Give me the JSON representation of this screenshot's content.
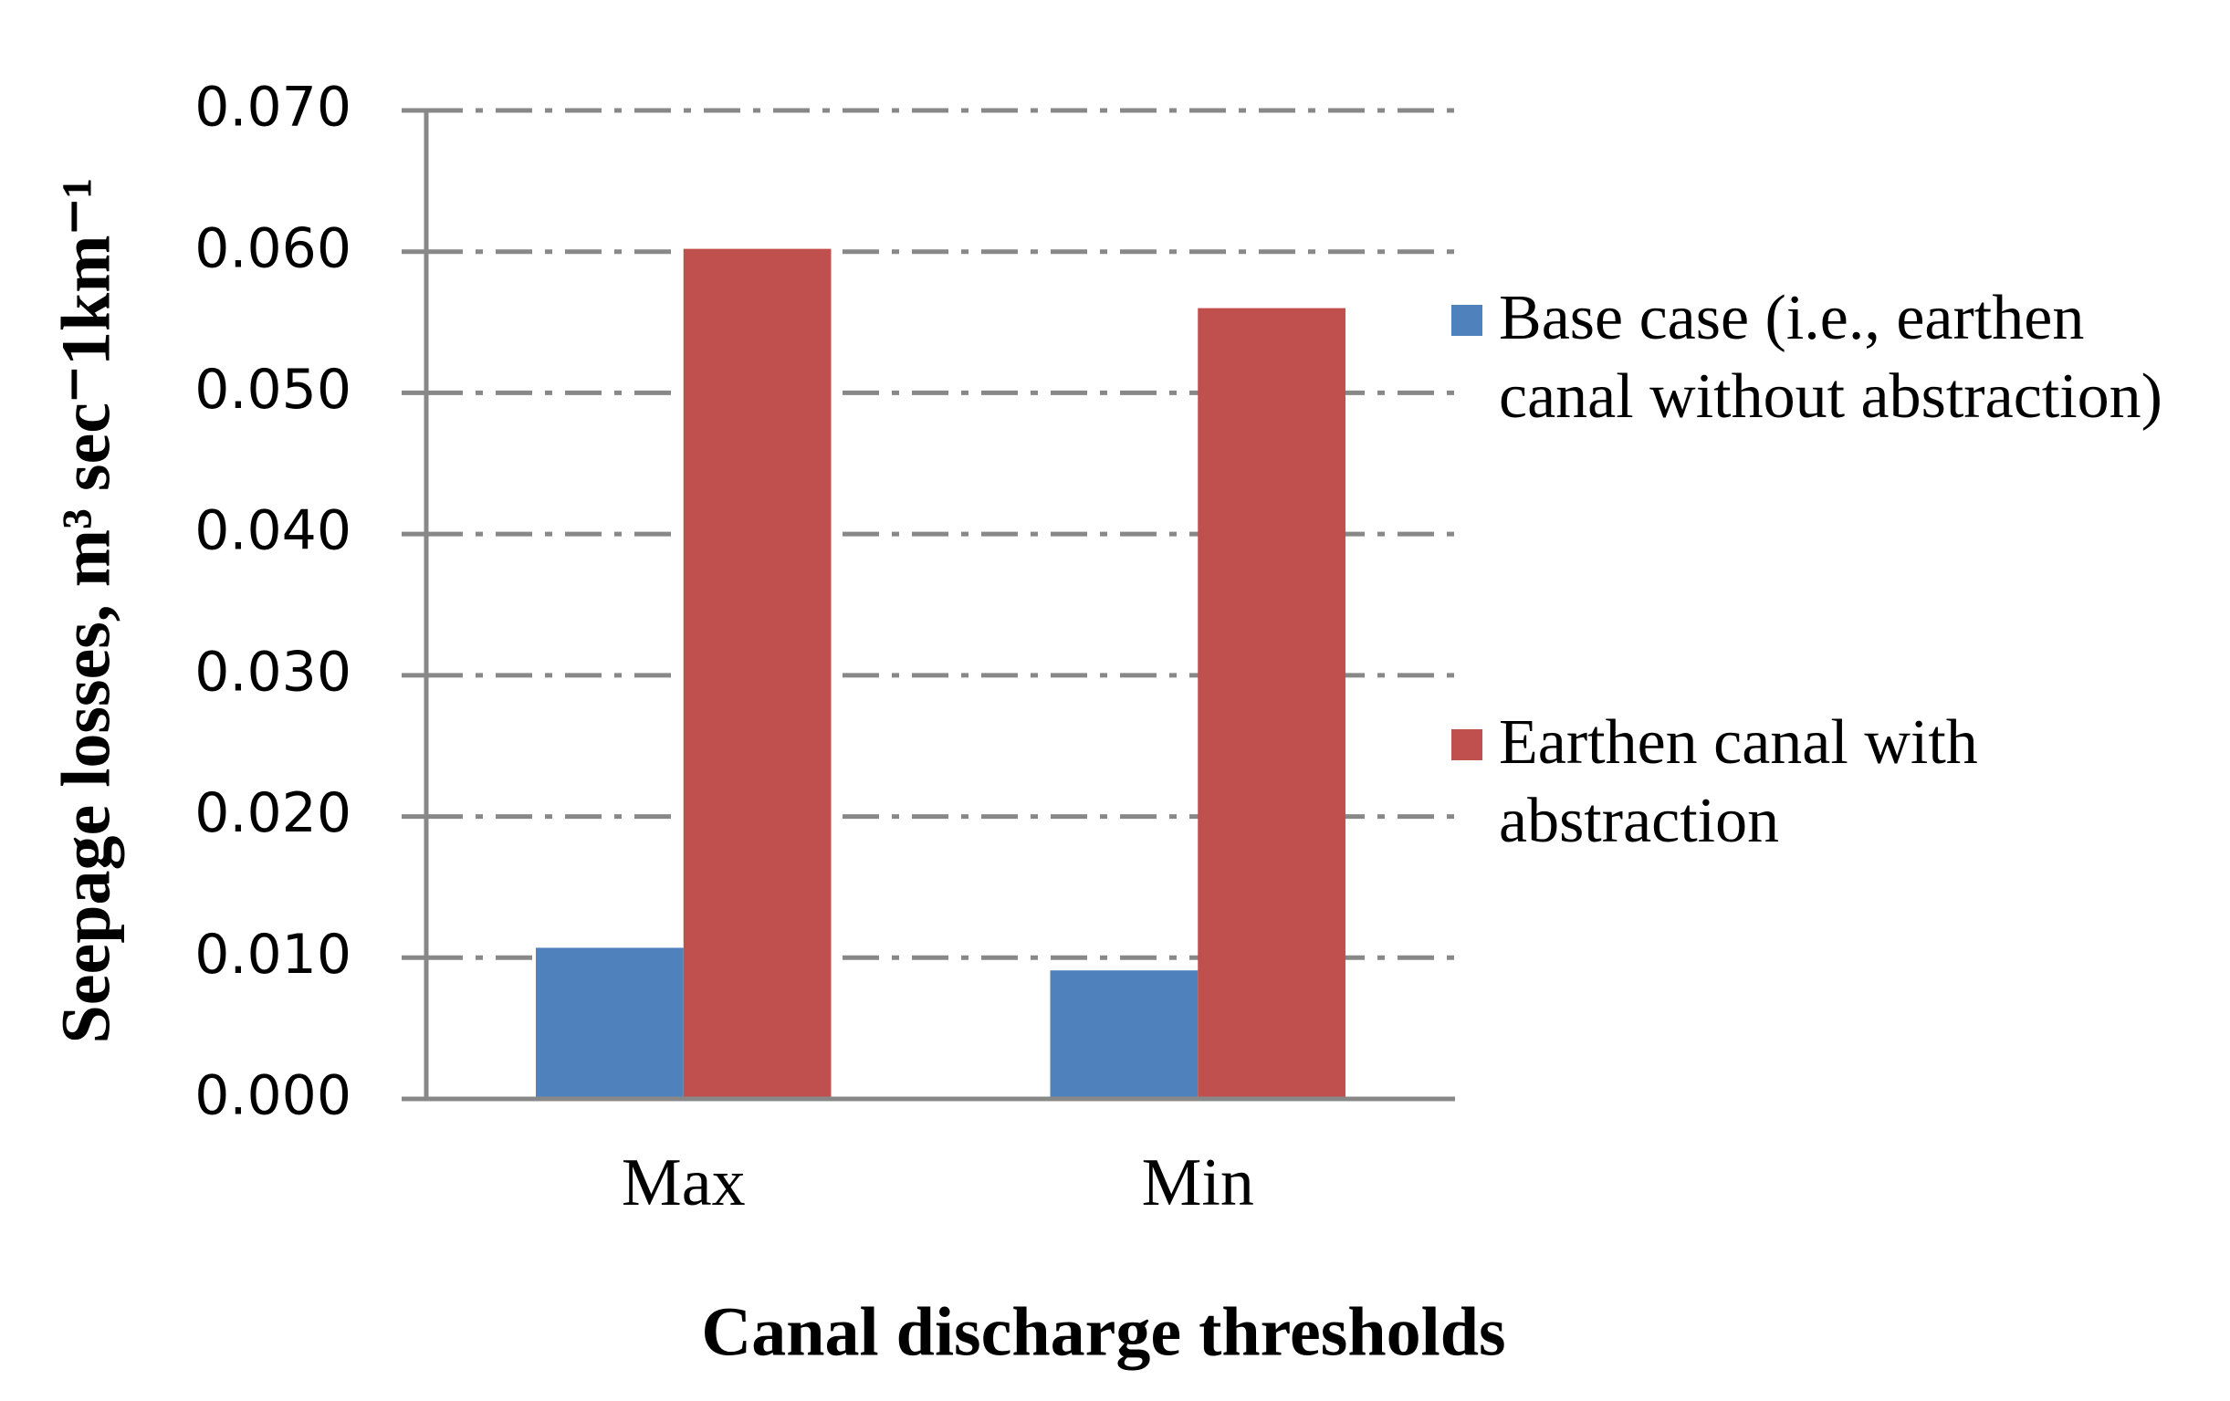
{
  "chart_data": {
    "type": "bar",
    "y_label": "Seepage losses, m³ sec⁻1km⁻¹",
    "x_label": "Canal discharge thresholds",
    "categories": [
      "Max",
      "Min"
    ],
    "series": [
      {
        "name": "Base case (i.e., earthen canal without abstraction)",
        "color": "#4f81bd",
        "values": [
          0.0107,
          0.0091
        ]
      },
      {
        "name": "Earthen canal with abstraction",
        "color": "#c0504d",
        "values": [
          0.0602,
          0.056
        ]
      }
    ],
    "ylim": [
      0,
      0.07
    ],
    "yticks": [
      {
        "value": 0,
        "label": "0.000"
      },
      {
        "value": 0.01,
        "label": "0.010"
      },
      {
        "value": 0.02,
        "label": "0.020"
      },
      {
        "value": 0.03,
        "label": "0.030"
      },
      {
        "value": 0.04,
        "label": "0.040"
      },
      {
        "value": 0.05,
        "label": "0.050"
      },
      {
        "value": 0.06,
        "label": "0.060"
      },
      {
        "value": 0.07,
        "label": "0.070"
      }
    ],
    "grid": true,
    "legend": "right"
  }
}
